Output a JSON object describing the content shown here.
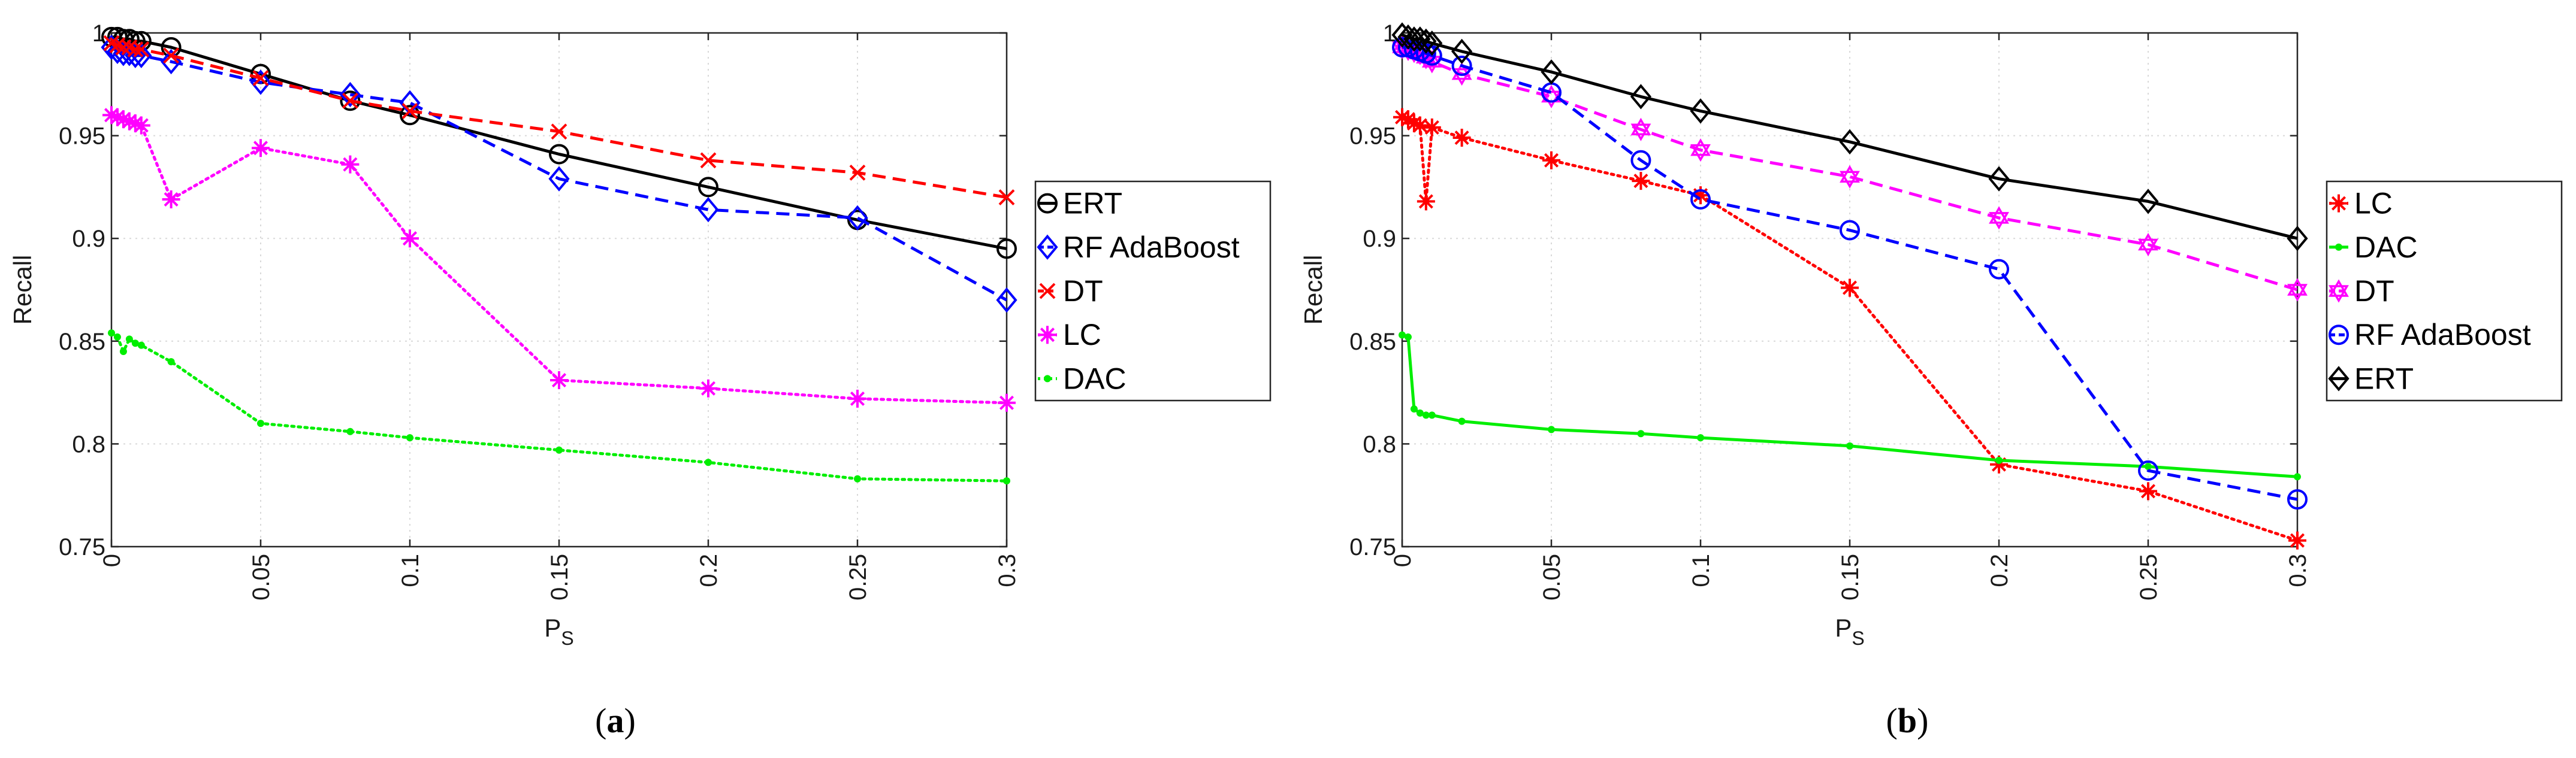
{
  "chart_data": [
    {
      "type": "line",
      "panel_label": {
        "open": "(",
        "letter": "a",
        "close": ")"
      },
      "xlabel": {
        "main": "P",
        "sub": "S"
      },
      "ylabel": "Recall",
      "xlim": [
        0,
        0.3
      ],
      "ylim": [
        0.75,
        1.0
      ],
      "xticks": [
        0,
        0.05,
        0.1,
        0.15,
        0.2,
        0.25,
        0.3
      ],
      "xtick_labels": [
        "0",
        "0.05",
        "0.1",
        "0.15",
        "0.2",
        "0.25",
        "0.3"
      ],
      "yticks": [
        0.75,
        0.8,
        0.85,
        0.9,
        0.95,
        1.0
      ],
      "ytick_labels": [
        "0.75",
        "0.8",
        "0.85",
        "0.9",
        "0.95",
        "1"
      ],
      "grid": true,
      "legend_position": "right",
      "x": [
        0,
        0.002,
        0.004,
        0.006,
        0.008,
        0.01,
        0.02,
        0.05,
        0.08,
        0.1,
        0.15,
        0.2,
        0.25,
        0.3
      ],
      "series": [
        {
          "name": "ERT",
          "color": "#000000",
          "line": "solid",
          "marker": "circle",
          "values": [
            0.998,
            0.998,
            0.997,
            0.997,
            0.996,
            0.996,
            0.993,
            0.98,
            0.967,
            0.96,
            0.941,
            0.925,
            0.909,
            0.895
          ]
        },
        {
          "name": "RF AdaBoost",
          "color": "#0000ff",
          "line": "dashed",
          "marker": "diamond",
          "values": [
            0.993,
            0.991,
            0.99,
            0.99,
            0.989,
            0.989,
            0.986,
            0.976,
            0.97,
            0.966,
            0.929,
            0.914,
            0.91,
            0.87
          ]
        },
        {
          "name": "DT",
          "color": "#ff0000",
          "line": "dashed",
          "marker": "x",
          "values": [
            0.995,
            0.994,
            0.993,
            0.993,
            0.992,
            0.992,
            0.989,
            0.978,
            0.967,
            0.962,
            0.952,
            0.938,
            0.932,
            0.92
          ]
        },
        {
          "name": "LC",
          "color": "#ff00ff",
          "line": "dotted",
          "marker": "asterisk",
          "values": [
            0.96,
            0.959,
            0.958,
            0.957,
            0.956,
            0.955,
            0.919,
            0.944,
            0.936,
            0.9,
            0.831,
            0.827,
            0.822,
            0.82
          ]
        },
        {
          "name": "DAC",
          "color": "#00ee00",
          "line": "dotted",
          "marker": "dot",
          "values": [
            0.854,
            0.852,
            0.845,
            0.851,
            0.849,
            0.848,
            0.84,
            0.81,
            0.806,
            0.803,
            0.797,
            0.791,
            0.783,
            0.782
          ]
        }
      ],
      "legend_order": [
        "ERT",
        "RF AdaBoost",
        "DT",
        "LC",
        "DAC"
      ]
    },
    {
      "type": "line",
      "panel_label": {
        "open": "(",
        "letter": "b",
        "close": ")"
      },
      "xlabel": {
        "main": "P",
        "sub": "S"
      },
      "ylabel": "Recall",
      "xlim": [
        0,
        0.3
      ],
      "ylim": [
        0.75,
        1.0
      ],
      "xticks": [
        0,
        0.05,
        0.1,
        0.15,
        0.2,
        0.25,
        0.3
      ],
      "xtick_labels": [
        "0",
        "0.05",
        "0.1",
        "0.15",
        "0.2",
        "0.25",
        "0.3"
      ],
      "yticks": [
        0.75,
        0.8,
        0.85,
        0.9,
        0.95,
        1.0
      ],
      "ytick_labels": [
        "0.75",
        "0.8",
        "0.85",
        "0.9",
        "0.95",
        "1"
      ],
      "grid": true,
      "legend_position": "right",
      "x": [
        0,
        0.002,
        0.004,
        0.006,
        0.008,
        0.01,
        0.02,
        0.05,
        0.08,
        0.1,
        0.15,
        0.2,
        0.25,
        0.3
      ],
      "series": [
        {
          "name": "LC",
          "color": "#ff0000",
          "line": "dotted",
          "marker": "asterisk",
          "values": [
            0.959,
            0.958,
            0.956,
            0.955,
            0.918,
            0.954,
            0.949,
            0.938,
            0.928,
            0.921,
            0.876,
            0.79,
            0.777,
            0.753
          ]
        },
        {
          "name": "DAC",
          "color": "#00ee00",
          "line": "solid",
          "marker": "dot",
          "values": [
            0.853,
            0.852,
            0.817,
            0.815,
            0.814,
            0.814,
            0.811,
            0.807,
            0.805,
            0.803,
            0.799,
            0.792,
            0.789,
            0.784
          ]
        },
        {
          "name": "DT",
          "color": "#ff00ff",
          "line": "dashed",
          "marker": "hexagram",
          "values": [
            0.993,
            0.992,
            0.991,
            0.99,
            0.988,
            0.986,
            0.98,
            0.969,
            0.953,
            0.943,
            0.93,
            0.91,
            0.897,
            0.875
          ]
        },
        {
          "name": "RF AdaBoost",
          "color": "#0000ff",
          "line": "dashed",
          "marker": "circle",
          "values": [
            0.993,
            0.993,
            0.992,
            0.991,
            0.99,
            0.989,
            0.984,
            0.971,
            0.938,
            0.919,
            0.904,
            0.885,
            0.787,
            0.773
          ]
        },
        {
          "name": "ERT",
          "color": "#000000",
          "line": "solid",
          "marker": "diamond",
          "values": [
            0.999,
            0.998,
            0.997,
            0.997,
            0.996,
            0.995,
            0.991,
            0.981,
            0.969,
            0.962,
            0.947,
            0.929,
            0.918,
            0.9
          ]
        }
      ],
      "legend_order": [
        "LC",
        "DAC",
        "DT",
        "RF AdaBoost",
        "ERT"
      ]
    }
  ]
}
